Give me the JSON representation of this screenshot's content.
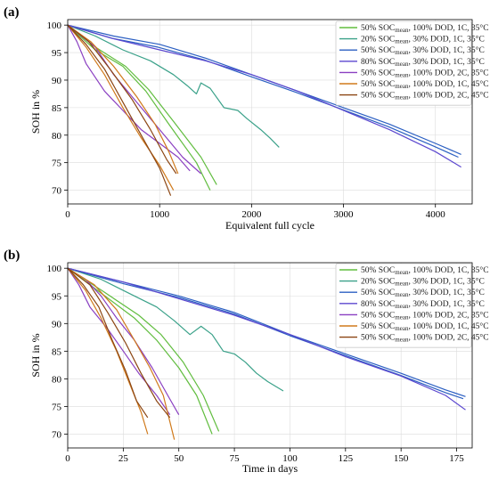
{
  "chart_data": [
    {
      "type": "line",
      "panel_label": "(a)",
      "xlabel": "Equivalent full cycle",
      "ylabel": "SOH in %",
      "xlim": [
        0,
        4400
      ],
      "ylim": [
        67.5,
        101
      ],
      "xticks": [
        0,
        1000,
        2000,
        3000,
        4000
      ],
      "yticks": [
        70,
        75,
        80,
        85,
        90,
        95,
        100
      ],
      "grid": true,
      "legend_position": "top-right",
      "series": [
        {
          "name": "50% SOC_mean, 100% DOD, 1C, 35°C",
          "color": "#61bd3f",
          "points": [
            [
              0,
              100
            ],
            [
              300,
              95.5
            ],
            [
              600,
              92.5
            ],
            [
              850,
              88
            ],
            [
              1100,
              82
            ],
            [
              1400,
              75
            ],
            [
              1550,
              70
            ]
          ]
        },
        {
          "name": "50% SOC_mean, 100% DOD, 1C, 35°C",
          "color": "#61bd3f",
          "points": [
            [
              0,
              100
            ],
            [
              320,
              95.8
            ],
            [
              630,
              92.5
            ],
            [
              880,
              88.3
            ],
            [
              1150,
              82.5
            ],
            [
              1450,
              76
            ],
            [
              1620,
              71
            ]
          ]
        },
        {
          "name": "20% SOC_mean, 30% DOD, 1C, 35°C",
          "color": "#3aa189",
          "points": [
            [
              0,
              100
            ],
            [
              300,
              98
            ],
            [
              600,
              95.5
            ],
            [
              900,
              93.5
            ],
            [
              1150,
              91
            ],
            [
              1300,
              89
            ],
            [
              1400,
              87.5
            ],
            [
              1450,
              89.5
            ],
            [
              1550,
              88.5
            ],
            [
              1700,
              85
            ],
            [
              1850,
              84.5
            ],
            [
              1950,
              83
            ],
            [
              2100,
              81
            ],
            [
              2200,
              79.5
            ],
            [
              2300,
              77.8
            ]
          ]
        },
        {
          "name": "50% SOC_mean, 30% DOD, 1C, 35°C",
          "color": "#2b5fc2",
          "points": [
            [
              0,
              100
            ],
            [
              500,
              98
            ],
            [
              1000,
              96.5
            ],
            [
              1500,
              94
            ],
            [
              2000,
              91
            ],
            [
              2500,
              88
            ],
            [
              3000,
              85
            ],
            [
              3500,
              82
            ],
            [
              4000,
              78.5
            ],
            [
              4280,
              76.5
            ]
          ]
        },
        {
          "name": "50% SOC_mean, 30% DOD, 1C, 35°C",
          "color": "#2b5fc2",
          "points": [
            [
              0,
              100
            ],
            [
              480,
              97.6
            ],
            [
              980,
              96
            ],
            [
              1480,
              93.7
            ],
            [
              1980,
              90.7
            ],
            [
              2480,
              87.8
            ],
            [
              2980,
              84.7
            ],
            [
              3480,
              81.6
            ],
            [
              3980,
              78
            ],
            [
              4250,
              76
            ]
          ]
        },
        {
          "name": "80% SOC_mean, 30% DOD, 1C, 35°C",
          "color": "#5b47cf",
          "points": [
            [
              0,
              100
            ],
            [
              500,
              97.5
            ],
            [
              1000,
              95.5
            ],
            [
              1500,
              93.5
            ],
            [
              2000,
              91
            ],
            [
              2500,
              88
            ],
            [
              3000,
              84.5
            ],
            [
              3500,
              81
            ],
            [
              4000,
              77
            ],
            [
              4280,
              74.2
            ]
          ]
        },
        {
          "name": "50% SOC_mean, 100% DOD, 2C, 35°C",
          "color": "#8a3fc1",
          "points": [
            [
              0,
              100
            ],
            [
              100,
              97
            ],
            [
              200,
              93
            ],
            [
              400,
              88
            ],
            [
              600,
              84.5
            ],
            [
              800,
              81
            ],
            [
              1000,
              78.5
            ],
            [
              1200,
              76
            ],
            [
              1330,
              73.5
            ]
          ]
        },
        {
          "name": "50% SOC_mean, 100% DOD, 2C, 35°C",
          "color": "#8a3fc1",
          "points": [
            [
              0,
              100
            ],
            [
              150,
              98
            ],
            [
              300,
              96
            ],
            [
              500,
              91
            ],
            [
              700,
              87
            ],
            [
              900,
              83
            ],
            [
              1100,
              79
            ],
            [
              1250,
              76
            ],
            [
              1450,
              73
            ]
          ]
        },
        {
          "name": "50% SOC_mean, 100% DOD, 1C, 45°C",
          "color": "#d07a1c",
          "points": [
            [
              0,
              100
            ],
            [
              200,
              96
            ],
            [
              400,
              91
            ],
            [
              600,
              85
            ],
            [
              800,
              79.5
            ],
            [
              1000,
              74.5
            ],
            [
              1150,
              70
            ]
          ]
        },
        {
          "name": "50% SOC_mean, 100% DOD, 1C, 45°C",
          "color": "#d07a1c",
          "points": [
            [
              0,
              100
            ],
            [
              250,
              97
            ],
            [
              500,
              92.5
            ],
            [
              750,
              87
            ],
            [
              950,
              82
            ],
            [
              1100,
              77
            ],
            [
              1200,
              73
            ]
          ]
        },
        {
          "name": "50% SOC_mean, 100% DOD, 2C, 45°C",
          "color": "#8b4512",
          "points": [
            [
              0,
              100
            ],
            [
              200,
              96.5
            ],
            [
              400,
              92
            ],
            [
              600,
              86
            ],
            [
              800,
              80
            ],
            [
              1000,
              74
            ],
            [
              1120,
              69
            ]
          ]
        },
        {
          "name": "50% SOC_mean, 100% DOD, 2C, 45°C",
          "color": "#8b4512",
          "points": [
            [
              0,
              100
            ],
            [
              230,
              97
            ],
            [
              460,
              92
            ],
            [
              700,
              86.5
            ],
            [
              900,
              81
            ],
            [
              1080,
              75.5
            ],
            [
              1180,
              73
            ]
          ]
        }
      ]
    },
    {
      "type": "line",
      "panel_label": "(b)",
      "xlabel": "Time in days",
      "ylabel": "SOH in %",
      "xlim": [
        0,
        182
      ],
      "ylim": [
        67.5,
        101
      ],
      "xticks": [
        0,
        25,
        50,
        75,
        100,
        125,
        150,
        175
      ],
      "yticks": [
        70,
        75,
        80,
        85,
        90,
        95,
        100
      ],
      "grid": true,
      "legend_position": "top-right",
      "series": [
        {
          "name": "50% SOC_mean, 100% DOD, 1C, 35°C",
          "color": "#61bd3f",
          "points": [
            [
              0,
              100
            ],
            [
              15,
              95.5
            ],
            [
              30,
              91
            ],
            [
              40,
              87
            ],
            [
              50,
              82
            ],
            [
              58,
              77
            ],
            [
              65,
              70
            ]
          ]
        },
        {
          "name": "50% SOC_mean, 100% DOD, 1C, 35°C",
          "color": "#61bd3f",
          "points": [
            [
              0,
              100
            ],
            [
              16,
              95.8
            ],
            [
              32,
              91.5
            ],
            [
              42,
              88
            ],
            [
              52,
              83
            ],
            [
              61,
              77
            ],
            [
              68,
              70.5
            ]
          ]
        },
        {
          "name": "20% SOC_mean, 30% DOD, 1C, 35°C",
          "color": "#3aa189",
          "points": [
            [
              0,
              100
            ],
            [
              15,
              98
            ],
            [
              30,
              95
            ],
            [
              40,
              93
            ],
            [
              48,
              90.5
            ],
            [
              55,
              88
            ],
            [
              60,
              89.5
            ],
            [
              65,
              88
            ],
            [
              70,
              85
            ],
            [
              75,
              84.5
            ],
            [
              80,
              83
            ],
            [
              85,
              81
            ],
            [
              90,
              79.5
            ],
            [
              97,
              77.8
            ]
          ]
        },
        {
          "name": "50% SOC_mean, 30% DOD, 1C, 35°C",
          "color": "#2b5fc2",
          "points": [
            [
              0,
              100
            ],
            [
              25,
              97.5
            ],
            [
              50,
              95
            ],
            [
              75,
              92
            ],
            [
              100,
              88
            ],
            [
              125,
              84.5
            ],
            [
              150,
              81
            ],
            [
              170,
              78
            ],
            [
              179,
              76.8
            ]
          ]
        },
        {
          "name": "50% SOC_mean, 30% DOD, 1C, 35°C",
          "color": "#2b5fc2",
          "points": [
            [
              0,
              100
            ],
            [
              25,
              97.2
            ],
            [
              50,
              94.7
            ],
            [
              75,
              91.7
            ],
            [
              100,
              87.8
            ],
            [
              125,
              84.2
            ],
            [
              150,
              80.6
            ],
            [
              170,
              77.5
            ],
            [
              178,
              76.4
            ]
          ]
        },
        {
          "name": "80% SOC_mean, 30% DOD, 1C, 35°C",
          "color": "#5b47cf",
          "points": [
            [
              0,
              100
            ],
            [
              25,
              97.5
            ],
            [
              50,
              94.5
            ],
            [
              75,
              91.5
            ],
            [
              100,
              88
            ],
            [
              125,
              84
            ],
            [
              150,
              80.5
            ],
            [
              170,
              77
            ],
            [
              179,
              74.4
            ]
          ]
        },
        {
          "name": "50% SOC_mean, 100% DOD, 2C, 35°C",
          "color": "#8a3fc1",
          "points": [
            [
              0,
              100
            ],
            [
              5,
              97
            ],
            [
              10,
              93
            ],
            [
              18,
              89
            ],
            [
              25,
              85
            ],
            [
              32,
              81
            ],
            [
              40,
              77
            ],
            [
              46,
              73.5
            ]
          ]
        },
        {
          "name": "50% SOC_mean, 100% DOD, 2C, 35°C",
          "color": "#8a3fc1",
          "points": [
            [
              0,
              100
            ],
            [
              8,
              98
            ],
            [
              15,
              95
            ],
            [
              22,
              91
            ],
            [
              30,
              87
            ],
            [
              38,
              82
            ],
            [
              45,
              77
            ],
            [
              50,
              73.5
            ]
          ]
        },
        {
          "name": "50% SOC_mean, 100% DOD, 1C, 45°C",
          "color": "#d07a1c",
          "points": [
            [
              0,
              100
            ],
            [
              8,
              96
            ],
            [
              15,
              91
            ],
            [
              22,
              85
            ],
            [
              28,
              79
            ],
            [
              33,
              74
            ],
            [
              36,
              70
            ]
          ]
        },
        {
          "name": "50% SOC_mean, 100% DOD, 1C, 45°C",
          "color": "#d07a1c",
          "points": [
            [
              0,
              100
            ],
            [
              12,
              97
            ],
            [
              22,
              92.5
            ],
            [
              30,
              87
            ],
            [
              37,
              82
            ],
            [
              43,
              77
            ],
            [
              48,
              69
            ]
          ]
        },
        {
          "name": "50% SOC_mean, 100% DOD, 2C, 45°C",
          "color": "#8b4512",
          "points": [
            [
              0,
              100
            ],
            [
              7,
              97
            ],
            [
              14,
              93
            ],
            [
              20,
              87
            ],
            [
              26,
              81.5
            ],
            [
              31,
              76
            ],
            [
              36,
              73
            ]
          ]
        },
        {
          "name": "50% SOC_mean, 100% DOD, 2C, 45°C",
          "color": "#8b4512",
          "points": [
            [
              0,
              100
            ],
            [
              10,
              97
            ],
            [
              18,
              92
            ],
            [
              26,
              86.5
            ],
            [
              33,
              81
            ],
            [
              40,
              76
            ],
            [
              46,
              73
            ]
          ]
        }
      ]
    }
  ],
  "legend": [
    {
      "pre": "50% SOC",
      "sub": "mean",
      "post": ", 100% DOD, 1C, 35°C",
      "color": "#61bd3f"
    },
    {
      "pre": "20% SOC",
      "sub": "mean",
      "post": ", 30% DOD, 1C, 35°C",
      "color": "#3aa189"
    },
    {
      "pre": "50% SOC",
      "sub": "mean",
      "post": ", 30% DOD, 1C, 35°C",
      "color": "#2b5fc2"
    },
    {
      "pre": "80% SOC",
      "sub": "mean",
      "post": ", 30% DOD, 1C, 35°C",
      "color": "#5b47cf"
    },
    {
      "pre": "50% SOC",
      "sub": "mean",
      "post": ", 100% DOD, 2C, 35°C",
      "color": "#8a3fc1"
    },
    {
      "pre": "50% SOC",
      "sub": "mean",
      "post": ", 100% DOD, 1C, 45°C",
      "color": "#d07a1c"
    },
    {
      "pre": "50% SOC",
      "sub": "mean",
      "post": ", 100% DOD, 2C, 45°C",
      "color": "#8b4512"
    }
  ]
}
